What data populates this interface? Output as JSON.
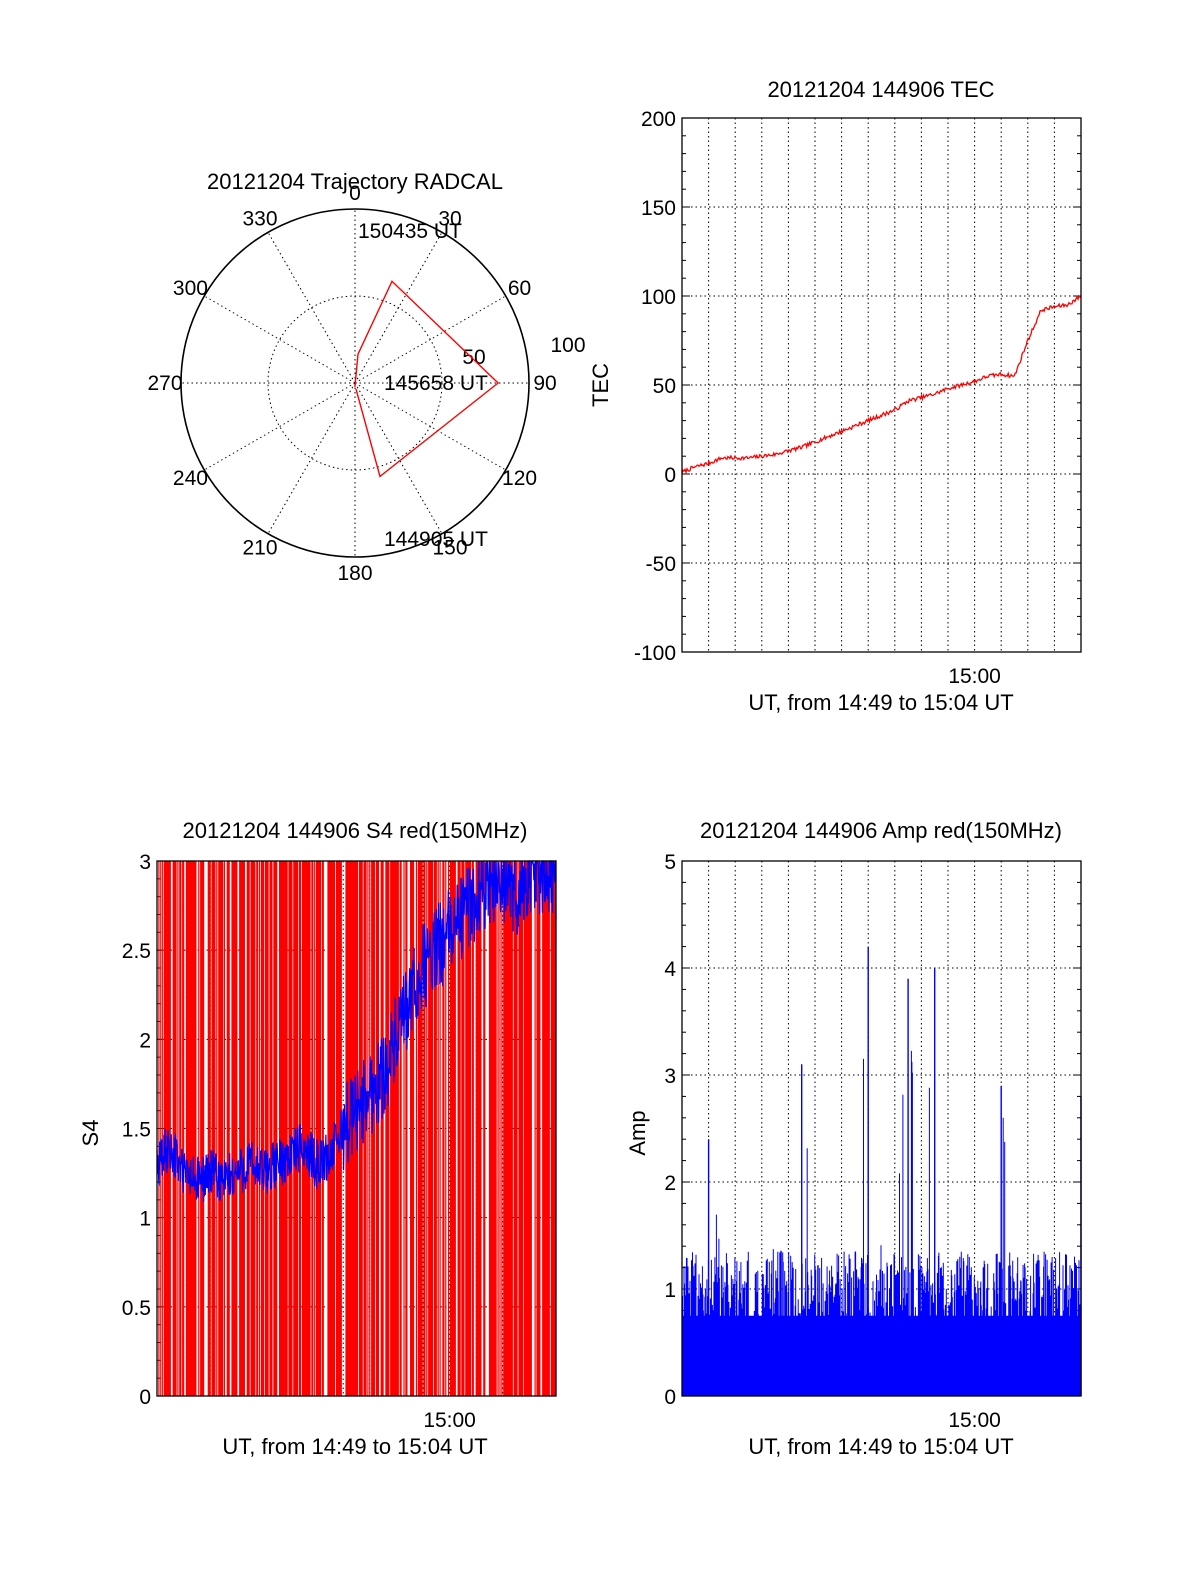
{
  "chart_data": [
    {
      "type": "polar",
      "title": "20121204 Trajectory RADCAL",
      "azimuth_labels": [
        "0",
        "30",
        "60",
        "90",
        "120",
        "150",
        "180",
        "210",
        "240",
        "270",
        "300",
        "330"
      ],
      "radius_labels": [
        "50",
        "100"
      ],
      "rmax": 100,
      "grid": true,
      "series": [
        {
          "color": "#ff0000",
          "points": [
            {
              "az": 2,
              "el": 92
            },
            {
              "az": 6,
              "el": 75
            },
            {
              "az": 20,
              "el": 34
            },
            {
              "az": 90,
              "el": 16
            },
            {
              "az": 165,
              "el": 40
            },
            {
              "az": 171,
              "el": 87
            }
          ]
        }
      ],
      "annotations": [
        "150435 UT",
        "145658 UT",
        "144905 UT"
      ]
    },
    {
      "type": "line",
      "title": "20121204 144906 TEC",
      "xlabel": "UT, from 14:49 to 15:04 UT",
      "ylabel": "TEC",
      "xlim": [
        0,
        15
      ],
      "ylim": [
        -100,
        200
      ],
      "yticks": [
        "-100",
        "-50",
        "0",
        "50",
        "100",
        "150",
        "200"
      ],
      "xtick_labels": [
        {
          "at": 11,
          "label": "15:00"
        }
      ],
      "grid": true,
      "series": [
        {
          "color": "#ff0000",
          "x": [
            0,
            0.5,
            1,
            1.5,
            2,
            2.5,
            3,
            3.5,
            4,
            4.5,
            5,
            5.5,
            6,
            6.5,
            7,
            7.5,
            8,
            8.5,
            9,
            9.5,
            10,
            10.5,
            11,
            11.5,
            12,
            12.5,
            13,
            13.5,
            14,
            14.5,
            15
          ],
          "y": [
            1,
            4,
            6,
            9,
            9,
            9,
            10,
            11,
            13,
            15,
            18,
            21,
            24,
            27,
            30,
            33,
            36,
            41,
            43,
            45,
            48,
            50,
            52,
            55,
            56,
            55,
            75,
            92,
            94,
            95,
            100
          ]
        }
      ]
    },
    {
      "type": "line",
      "title": "20121204 144906 S4 red(150MHz)",
      "xlabel": "UT, from 14:49 to 15:04 UT",
      "ylabel": "S4",
      "xlim": [
        0,
        15
      ],
      "ylim": [
        0,
        3
      ],
      "yticks": [
        "0",
        "0.5",
        "1",
        "1.5",
        "2",
        "2.5",
        "3"
      ],
      "xtick_labels": [
        {
          "at": 11,
          "label": "15:00"
        }
      ],
      "grid": true,
      "series": [
        {
          "name": "",
          "color": "#ff0000",
          "kind": "dense-spikes-0-to-3"
        },
        {
          "color": "#0000ff",
          "x": [
            0,
            0.5,
            1,
            1.5,
            2,
            2.5,
            3,
            3.5,
            4,
            4.5,
            5,
            5.5,
            6,
            6.5,
            7,
            7.5,
            8,
            8.5,
            9,
            9.5,
            10,
            10.5,
            11,
            11.5,
            12,
            12.5,
            13,
            13.5,
            14,
            14.5,
            15
          ],
          "y": [
            1.3,
            1.4,
            1.25,
            1.2,
            1.25,
            1.2,
            1.25,
            1.3,
            1.25,
            1.3,
            1.35,
            1.4,
            1.3,
            1.35,
            1.5,
            1.6,
            1.7,
            1.8,
            2.0,
            2.2,
            2.4,
            2.5,
            2.6,
            2.7,
            2.8,
            2.9,
            2.9,
            2.8,
            2.9,
            2.95,
            2.9
          ]
        }
      ]
    },
    {
      "type": "line",
      "title": "20121204 144906 Amp red(150MHz)",
      "xlabel": "UT, from 14:49 to 15:04 UT",
      "ylabel": "Amp",
      "xlim": [
        0,
        15
      ],
      "ylim": [
        0,
        5
      ],
      "yticks": [
        "0",
        "1",
        "2",
        "3",
        "4",
        "5"
      ],
      "xtick_labels": [
        {
          "at": 11,
          "label": "15:00"
        }
      ],
      "grid": true,
      "series": [
        {
          "color": "#0000ff",
          "kind": "dense-spikes",
          "x": [
            0,
            0.5,
            1,
            1.5,
            2,
            2.5,
            3,
            3.5,
            4,
            4.5,
            5,
            5.5,
            6,
            6.5,
            7,
            7.5,
            8,
            8.5,
            9,
            9.5,
            10,
            10.5,
            11,
            11.5,
            12,
            12.5,
            13,
            13.5,
            14,
            14.5,
            15
          ],
          "y": [
            1.3,
            1.1,
            2.4,
            1.2,
            1.3,
            1.1,
            1.2,
            1.4,
            1.3,
            3.1,
            1.2,
            1.3,
            1.1,
            1.2,
            4.2,
            1.3,
            1.1,
            3.9,
            1.2,
            4.0,
            1.1,
            1.2,
            1.1,
            1.0,
            2.9,
            0.9,
            1.0,
            0.9,
            1.2,
            0.9,
            2.8
          ]
        }
      ]
    }
  ]
}
